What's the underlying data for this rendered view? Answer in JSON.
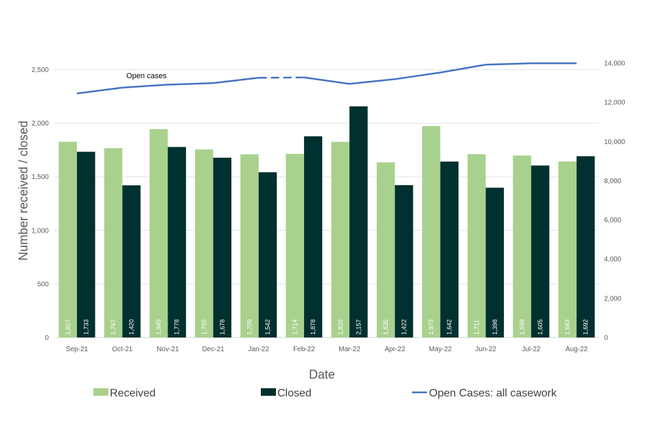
{
  "chart_data": {
    "type": "bar",
    "categories": [
      "Sep-21",
      "Oct-21",
      "Nov-21",
      "Dec-21",
      "Jan-22",
      "Feb-22",
      "Mar-22",
      "Apr-22",
      "May-22",
      "Jun-22",
      "Jul-22",
      "Aug-22"
    ],
    "series": [
      {
        "name": "Received",
        "type": "bar",
        "axis": "left",
        "color": "#a9d18e",
        "values": [
          1827,
          1767,
          1945,
          1755,
          1709,
          1714,
          1826,
          1635,
          1973,
          1711,
          1699,
          1643
        ],
        "labels": [
          "1,827",
          "1,767",
          "1,945",
          "1,755",
          "1,709",
          "1,714",
          "1,826",
          "1,635",
          "1,973",
          "1,711",
          "1,699",
          "1,643"
        ],
        "label_color": "#ffffff"
      },
      {
        "name": "Closed",
        "type": "bar",
        "axis": "left",
        "color": "#00302f",
        "values": [
          1733,
          1420,
          1778,
          1678,
          1542,
          1878,
          2157,
          1422,
          1642,
          1398,
          1605,
          1692
        ],
        "labels": [
          "1,733",
          "1,420",
          "1,778",
          "1,678",
          "1,542",
          "1,878",
          "2,157",
          "1,422",
          "1,642",
          "1,398",
          "1,605",
          "1,692"
        ],
        "label_color": "#ffffff"
      },
      {
        "name": "Open Cases: all casework",
        "type": "line",
        "axis": "right",
        "color": "#4472c4",
        "values": [
          12450,
          12750,
          12900,
          12980,
          13250,
          13270,
          12940,
          13180,
          13520,
          13920,
          13990,
          13990
        ],
        "dashed_segments": [
          [
            4,
            5
          ]
        ]
      }
    ],
    "xlabel": "Date",
    "ylabel": "Number received / closed",
    "ylim": [
      0,
      2500
    ],
    "yticks": [
      0,
      500,
      1000,
      1500,
      2000,
      2500
    ],
    "ytick_labels": [
      "0",
      "500",
      "1,000",
      "1,500",
      "2,000",
      "2,500"
    ],
    "y2lim": [
      0,
      14000
    ],
    "y2ticks": [
      0,
      2000,
      4000,
      6000,
      8000,
      10000,
      12000,
      14000
    ],
    "y2tick_labels": [
      "0",
      "2,000",
      "4,000",
      "6,000",
      "8,000",
      "10,000",
      "12,000",
      "14,000"
    ],
    "annotations": [
      {
        "text": "Open cases",
        "series": "Open Cases: all casework"
      }
    ],
    "grid": true,
    "legend_position": "bottom"
  }
}
